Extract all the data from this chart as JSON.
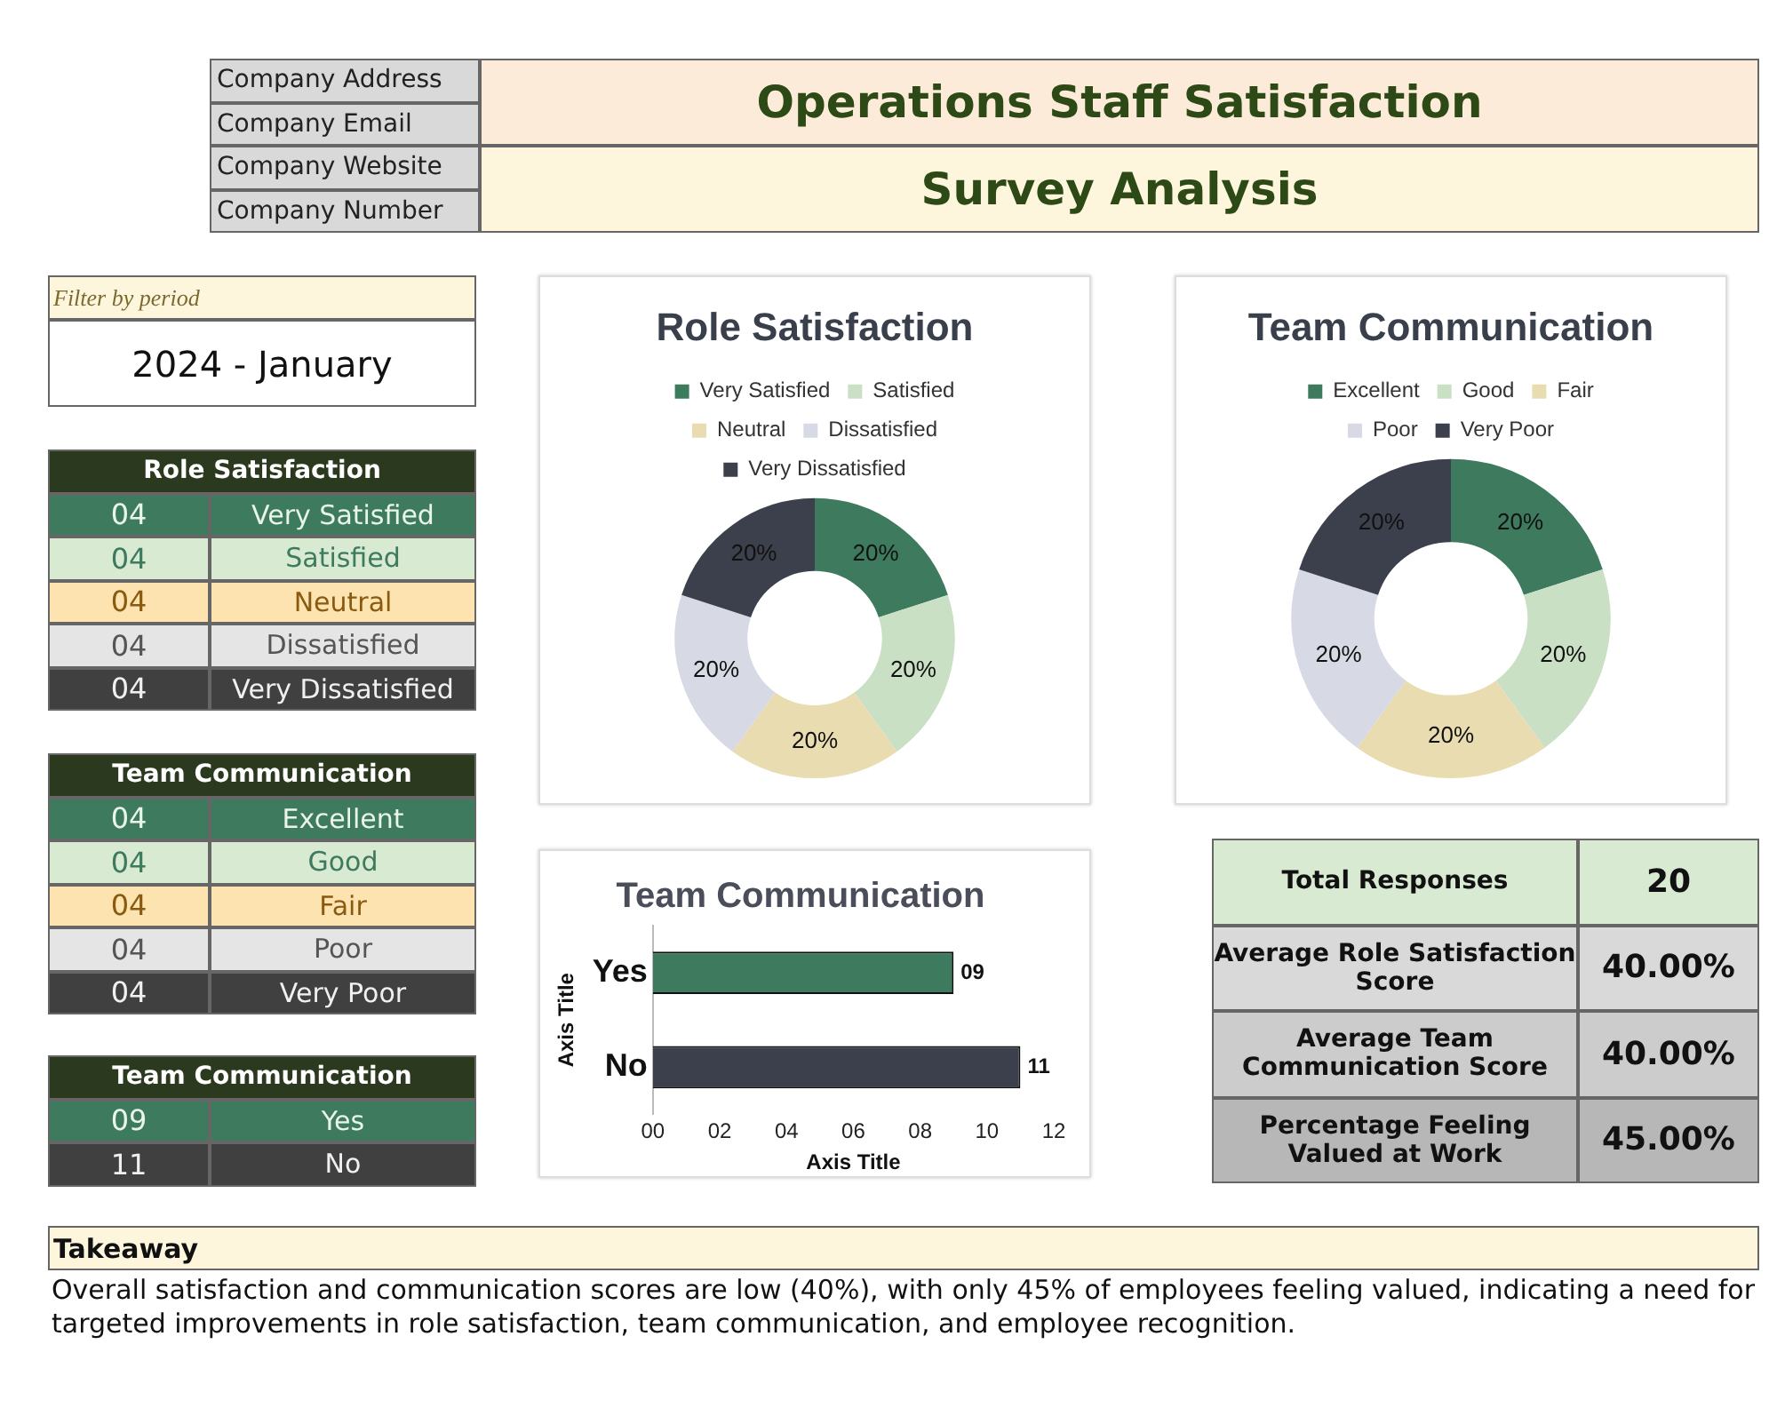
{
  "chart_data": [
    {
      "type": "other",
      "title": "Operations Staff Satisfaction",
      "subtitle": "Survey Analysis",
      "annotations": [
        "Company Address",
        "Company Email",
        "Company Website",
        "Company Number"
      ]
    },
    {
      "type": "other",
      "title": "Filter by period",
      "annotations": [
        "2024 - January"
      ]
    },
    {
      "type": "other",
      "title": "Role Satisfaction",
      "annotations": [
        "04",
        "Very Satisfied",
        "04",
        "Satisfied",
        "04",
        "Neutral",
        "04",
        "Dissatisfied",
        "04",
        "Very Dissatisfied"
      ]
    },
    {
      "type": "other",
      "title": "Team Communication",
      "annotations": [
        "04",
        "Excellent",
        "04",
        "Good",
        "04",
        "Fair",
        "04",
        "Poor",
        "04",
        "Very Poor"
      ]
    },
    {
      "type": "other",
      "title": "Team Communication",
      "annotations": [
        "09",
        "Yes",
        "11",
        "No"
      ]
    },
    {
      "type": "donut",
      "title": "Role Satisfaction",
      "categories": [
        "Very Satisfied",
        "Satisfied",
        "Neutral",
        "Dissatisfied",
        "Very Dissatisfied"
      ],
      "values": [
        20,
        20,
        20,
        20,
        20
      ],
      "value_labels": [
        "20%",
        "20%",
        "20%",
        "20%",
        "20%"
      ],
      "colors": [
        "#3d7a5e",
        "#c9e0c5",
        "#e8dcb0",
        "#d7d9e4",
        "#3c404c"
      ],
      "legend": "top"
    },
    {
      "type": "donut",
      "title": "Team Communication",
      "categories": [
        "Excellent",
        "Good",
        "Fair",
        "Poor",
        "Very Poor"
      ],
      "values": [
        20,
        20,
        20,
        20,
        20
      ],
      "value_labels": [
        "20%",
        "20%",
        "20%",
        "20%",
        "20%"
      ],
      "colors": [
        "#3d7a5e",
        "#c9e0c5",
        "#e8dcb0",
        "#d7d9e4",
        "#3c404c"
      ],
      "legend": "top"
    },
    {
      "type": "bar",
      "orientation": "horizontal",
      "title": "Team Communication",
      "xlabel": "Axis Title",
      "ylabel": "Axis Title",
      "categories": [
        "Yes",
        "No"
      ],
      "values": [
        9,
        11
      ],
      "value_labels": [
        "09",
        "11"
      ],
      "colors": [
        "#3d7a5e",
        "#3c404c"
      ],
      "xlim": [
        0,
        12
      ],
      "xticks": [
        {
          "value": 0,
          "label": "00"
        },
        {
          "value": 2,
          "label": "02"
        },
        {
          "value": 4,
          "label": "04"
        },
        {
          "value": 6,
          "label": "06"
        },
        {
          "value": 8,
          "label": "08"
        },
        {
          "value": 10,
          "label": "10"
        },
        {
          "value": 12,
          "label": "12"
        }
      ],
      "grid": false
    },
    {
      "type": "other",
      "annotations": [
        "Total Responses",
        "20",
        "Average Role Satisfaction Score",
        "40.00%",
        "Average Team Communication Score",
        "40.00%",
        "Percentage Feeling Valued at Work",
        "45.00%"
      ]
    },
    {
      "type": "other",
      "title": "Takeaway",
      "annotations": [
        "Overall satisfaction and communication scores are low (40%), with only 45% of employees feeling valued, indicating a need for targeted improvements in role satisfaction, team communication, and employee recognition."
      ]
    }
  ]
}
